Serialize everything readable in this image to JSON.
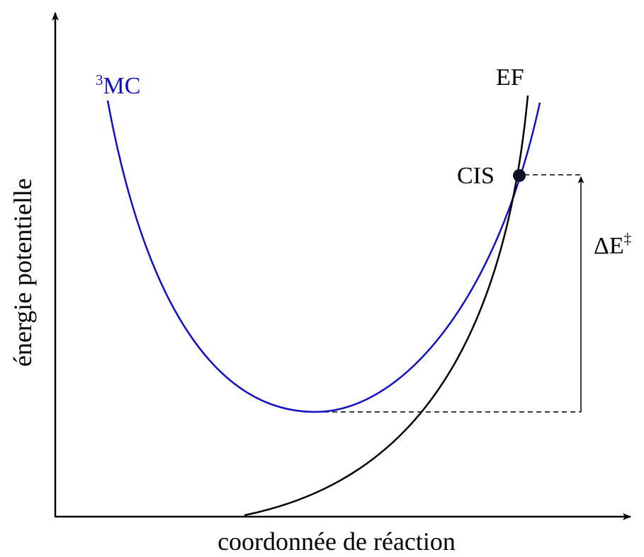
{
  "axes": {
    "x_label": "coordonnée de réaction",
    "y_label": "énergie potentielle"
  },
  "curves": [
    {
      "label_sup": "3",
      "label": "MC"
    },
    {
      "label": "EF"
    }
  ],
  "point": {
    "label": "CIS"
  },
  "gap": {
    "label": "ΔE",
    "label_sup": "‡"
  }
}
